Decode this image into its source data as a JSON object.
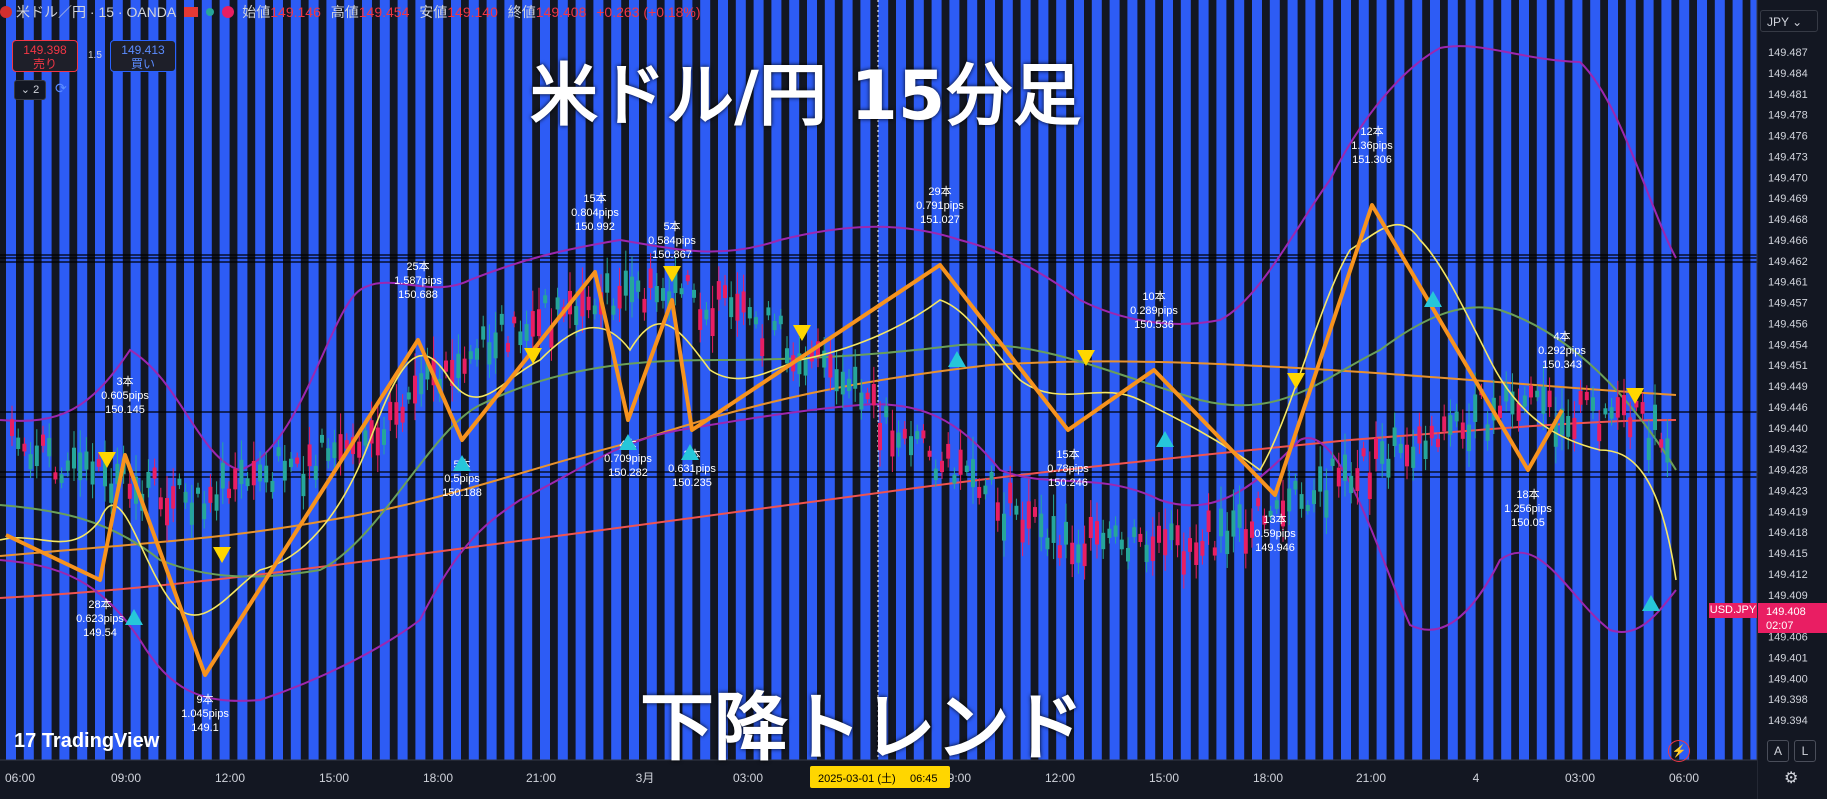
{
  "header": {
    "symbol": "米ドル／円 · 15 · OANDA",
    "open_label": "始値",
    "open": "149.146",
    "high_label": "高値",
    "high": "149.454",
    "low_label": "安値",
    "low": "149.140",
    "close_label": "終値",
    "close": "149.408",
    "change": "+0.263 (+0.18%)"
  },
  "trade": {
    "sell_price": "149.398",
    "sell_label": "売り",
    "spread": "1.5",
    "buy_price": "149.413",
    "buy_label": "買い"
  },
  "indicators_collapse": "2",
  "overlay": {
    "title": "米ドル/円 15分足",
    "subtitle": "下降トレンド"
  },
  "branding": "TradingView",
  "currency": "JPY",
  "axis_buttons": {
    "auto": "A",
    "log": "L"
  },
  "colors": {
    "background": "#131722",
    "stripe": "#2d5cf5",
    "candle_up": "#e91e63",
    "candle_down": "#26a69a",
    "zigzag": "#f7931e",
    "ma_fast": "#f5e663",
    "ma_mid": "#6a9f5a",
    "ma_slow": "#e8922e",
    "ma_long": "#ef5350",
    "bollinger": "#9c27b0",
    "marker_up": "#26c6da",
    "marker_down": "#ffd600"
  },
  "chart_data": {
    "type": "candlestick",
    "symbol": "USDJPY",
    "timeframe": "15",
    "x_ticks": [
      "06:00",
      "09:00",
      "12:00",
      "15:00",
      "18:00",
      "21:00",
      "3月",
      "03:00",
      "06:00",
      "09:00",
      "12:00",
      "15:00",
      "18:00",
      "21:00",
      "4",
      "03:00",
      "06:00"
    ],
    "crosshair_date": "2025-03-01 (土)",
    "crosshair_time": "06:45",
    "y_ticks": [
      "149.487",
      "149.484",
      "149.481",
      "149.478",
      "149.476",
      "149.473",
      "149.470",
      "149.469",
      "149.468",
      "149.466",
      "149.462",
      "149.461",
      "149.457",
      "149.456",
      "149.454",
      "149.451",
      "149.449",
      "149.446",
      "149.440",
      "149.432",
      "149.428",
      "149.423",
      "149.419",
      "149.418",
      "149.415",
      "149.412",
      "149.409",
      "149.408",
      "149.406",
      "149.401",
      "149.400",
      "149.398",
      "149.394"
    ],
    "last_price": {
      "symbol": "USD.JPY",
      "price": "149.408",
      "countdown": "02:07"
    },
    "zigzag_points": [
      {
        "x_time": "05:30",
        "price_note": "start"
      },
      {
        "label": [
          "28本",
          "0.623pips",
          "149.54"
        ],
        "type": "low"
      },
      {
        "label": [
          "3本",
          "0.605pips",
          "150.145"
        ],
        "type": "high"
      },
      {
        "label": [
          "9本",
          "1.045pips",
          "149.1"
        ],
        "type": "low"
      },
      {
        "label": [
          "25本",
          "1.587pips",
          "150.688"
        ],
        "type": "high"
      },
      {
        "label": [
          "5本",
          "0.5pips",
          "150.188"
        ],
        "type": "low"
      },
      {
        "label": [
          "15本",
          "0.804pips",
          "150.992"
        ],
        "type": "high"
      },
      {
        "label": [
          "4本",
          "0.709pips",
          "150.282"
        ],
        "type": "low"
      },
      {
        "label": [
          "5本",
          "0.584pips",
          "150.867"
        ],
        "type": "high"
      },
      {
        "label": [
          "2本",
          "0.631pips",
          "150.235"
        ],
        "type": "low"
      },
      {
        "label": [
          "29本",
          "0.791pips",
          "151.027"
        ],
        "type": "high"
      },
      {
        "label": [
          "15本",
          "0.78pips",
          "150.246"
        ],
        "type": "low"
      },
      {
        "label": [
          "10本",
          "0.289pips",
          "150.536"
        ],
        "type": "high"
      },
      {
        "label": [
          "13本",
          "0.59pips",
          "149.946"
        ],
        "type": "low"
      },
      {
        "label": [
          "12本",
          "1.36pips",
          "151.306"
        ],
        "type": "high"
      },
      {
        "label": [
          "18本",
          "1.256pips",
          "150.05"
        ],
        "type": "low"
      },
      {
        "label": [
          "4本",
          "0.292pips",
          "150.343"
        ],
        "type": "high"
      }
    ]
  }
}
